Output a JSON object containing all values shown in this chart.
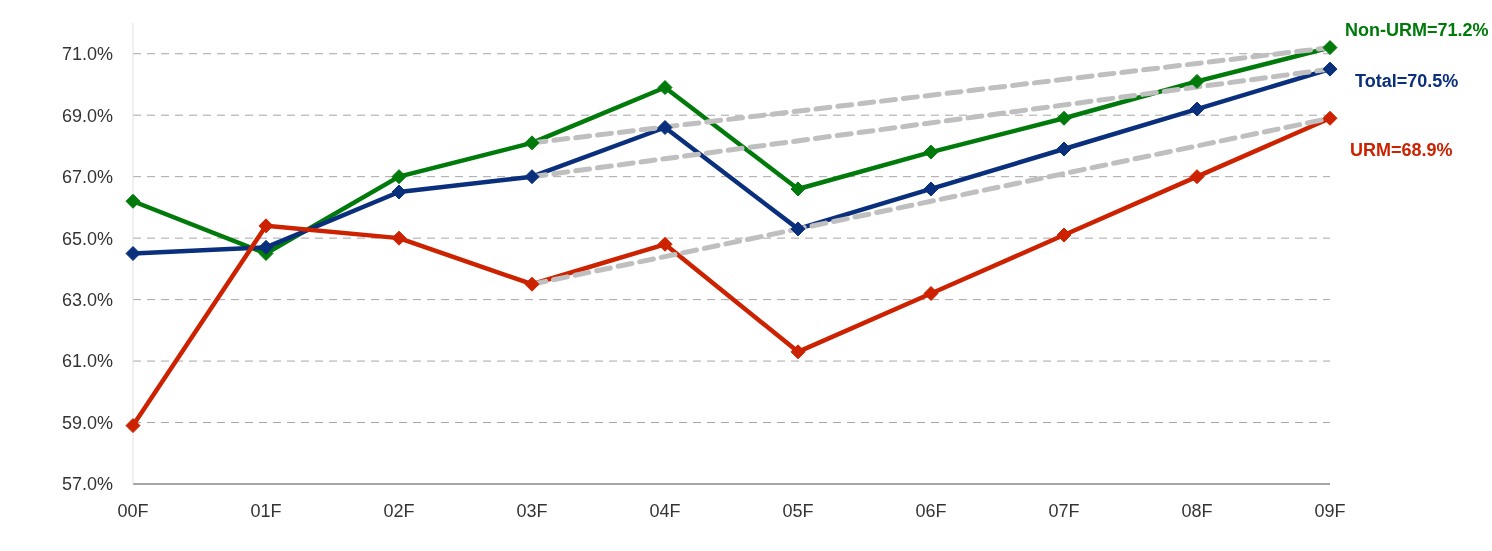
{
  "chart_data": {
    "type": "line",
    "categories": [
      "00F",
      "01F",
      "02F",
      "03F",
      "04F",
      "05F",
      "06F",
      "07F",
      "08F",
      "09F"
    ],
    "series": [
      {
        "color": "#007a0a",
        "values": [
          66.2,
          64.5,
          67.0,
          68.1,
          69.9,
          66.6,
          67.8,
          68.9,
          70.1,
          71.2
        ]
      },
      {
        "color": "#0a2f7d",
        "values": [
          64.5,
          64.7,
          66.5,
          67.0,
          68.6,
          65.3,
          66.6,
          67.9,
          69.2,
          70.5
        ]
      },
      {
        "color": "#cc2200",
        "values": [
          58.9,
          65.4,
          65.0,
          63.5,
          64.8,
          61.3,
          63.2,
          65.1,
          67.0,
          68.9
        ]
      },
      {
        "type": "line",
        "x": [
          "03F",
          "09F"
        ],
        "values": [
          68.1,
          71.2
        ],
        "color": "#bfbfbf",
        "line_style": "dashed",
        "marker": "none"
      },
      {
        "type": "line",
        "x": [
          "03F",
          "09F"
        ],
        "values": [
          67.0,
          70.5
        ],
        "color": "#bfbfbf",
        "line_style": "dashed",
        "marker": "none"
      },
      {
        "type": "line",
        "x": [
          "03F",
          "09F"
        ],
        "values": [
          63.5,
          68.9
        ],
        "color": "#bfbfbf",
        "line_style": "dashed",
        "marker": "none"
      }
    ],
    "ylim": [
      57,
      72
    ],
    "yticks": [
      {
        "value": 57,
        "label": "57.0%"
      },
      {
        "value": 59,
        "label": "59.0%"
      },
      {
        "value": 61,
        "label": "61.0%"
      },
      {
        "value": 63,
        "label": "63.0%"
      },
      {
        "value": 65,
        "label": "65.0%"
      },
      {
        "value": 67,
        "label": "67.0%"
      },
      {
        "value": 69,
        "label": "69.0%"
      },
      {
        "value": 71,
        "label": "71.0%"
      }
    ],
    "grid": "y",
    "marker": "diamond",
    "line_style": "solid",
    "legend": false,
    "annotations": [
      {
        "text": "Non-URM=71.2%",
        "x": "09F",
        "y": 71.2
      },
      {
        "text": "Total=70.5%",
        "x": "09F",
        "y": 70.5
      },
      {
        "text": "URM=68.9%",
        "x": "09F",
        "y": 68.9
      }
    ]
  }
}
